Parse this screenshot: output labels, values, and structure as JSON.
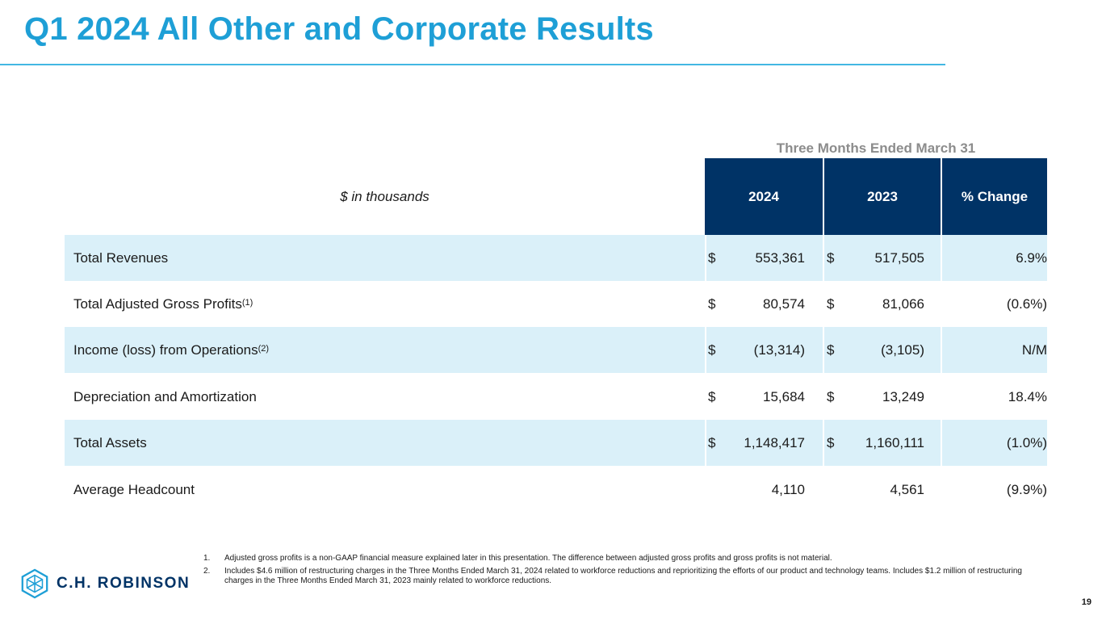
{
  "slide": {
    "title": "Q1 2024 All Other and Corporate Results",
    "page_number": "19"
  },
  "table": {
    "group_header": "Three Months Ended March 31",
    "units_label": "$ in thousands",
    "columns": [
      "2024",
      "2023",
      "% Change"
    ],
    "rows": [
      {
        "label": "Total Revenues",
        "sup": "",
        "d1": "$",
        "v2024": "553,361",
        "d2": "$",
        "v2023": "517,505",
        "change": "6.9%"
      },
      {
        "label": "Total Adjusted Gross Profits",
        "sup": "(1)",
        "d1": "$",
        "v2024": "80,574",
        "d2": "$",
        "v2023": "81,066",
        "change": "(0.6%)"
      },
      {
        "label": "Income (loss) from Operations",
        "sup": "(2)",
        "d1": "$",
        "v2024": "(13,314)",
        "d2": "$",
        "v2023": "(3,105)",
        "change": "N/M"
      },
      {
        "label": "Depreciation and Amortization",
        "sup": "",
        "d1": "$",
        "v2024": "15,684",
        "d2": "$",
        "v2023": "13,249",
        "change": "18.4%"
      },
      {
        "label": "Total Assets",
        "sup": "",
        "d1": "$",
        "v2024": "1,148,417",
        "d2": "$",
        "v2023": "1,160,111",
        "change": "(1.0%)"
      },
      {
        "label": "Average Headcount",
        "sup": "",
        "d1": "",
        "v2024": "4,110",
        "d2": "",
        "v2023": "4,561",
        "change": "(9.9%)"
      }
    ]
  },
  "footnotes": [
    {
      "num": "1.",
      "text": "Adjusted gross profits is a non-GAAP financial measure explained later in this presentation. The difference between adjusted gross profits and gross profits is not material."
    },
    {
      "num": "2.",
      "text": "Includes $4.6 million of restructuring charges in the Three Months Ended March 31, 2024 related to workforce reductions and reprioritizing the efforts of our product and technology teams. Includes $1.2 million of restructuring charges in the Three Months Ended March 31, 2023 mainly related to workforce reductions."
    }
  ],
  "logo": {
    "text": "C.H. ROBINSON",
    "icon": "chr-cube-icon"
  },
  "colors": {
    "title": "#1e9fd6",
    "header_bg": "#003366",
    "row_shade": "#daf0f9",
    "group_header": "#8c8c8c"
  }
}
